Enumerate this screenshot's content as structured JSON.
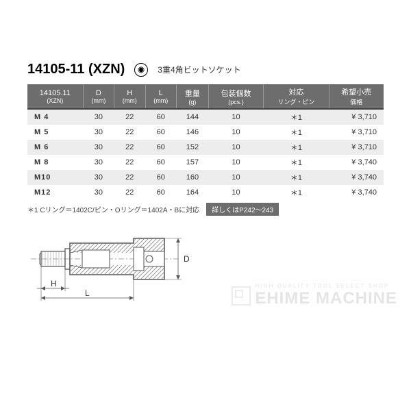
{
  "header": {
    "product_code": "14105-11 (XZN)",
    "subtitle": "3重4角ビットソケット"
  },
  "table": {
    "columns": [
      {
        "main": "14105.11",
        "sub": "(XZN)"
      },
      {
        "main": "D",
        "sub": "(mm)"
      },
      {
        "main": "H",
        "sub": "(mm)"
      },
      {
        "main": "L",
        "sub": "(mm)"
      },
      {
        "main": "重量",
        "sub": "(g)"
      },
      {
        "main": "包装個数",
        "sub": "(pcs.)"
      },
      {
        "main": "対応",
        "sub": "リング・ピン"
      },
      {
        "main": "希望小売",
        "sub": "価格"
      }
    ],
    "rows": [
      {
        "model": "M 4",
        "d": "30",
        "h": "22",
        "l": "60",
        "w": "144",
        "pcs": "10",
        "ring": "＊1",
        "price": "¥ 3,710",
        "alt": true
      },
      {
        "model": "M 5",
        "d": "30",
        "h": "22",
        "l": "60",
        "w": "146",
        "pcs": "10",
        "ring": "＊1",
        "price": "¥ 3,710",
        "alt": false
      },
      {
        "model": "M 6",
        "d": "30",
        "h": "22",
        "l": "60",
        "w": "152",
        "pcs": "10",
        "ring": "＊1",
        "price": "¥ 3,710",
        "alt": true
      },
      {
        "model": "M 8",
        "d": "30",
        "h": "22",
        "l": "60",
        "w": "157",
        "pcs": "10",
        "ring": "＊1",
        "price": "¥ 3,740",
        "alt": false
      },
      {
        "model": "M10",
        "d": "30",
        "h": "22",
        "l": "60",
        "w": "160",
        "pcs": "10",
        "ring": "＊1",
        "price": "¥ 3,740",
        "alt": true
      },
      {
        "model": "M12",
        "d": "30",
        "h": "22",
        "l": "60",
        "w": "164",
        "pcs": "10",
        "ring": "＊1",
        "price": "¥ 3,740",
        "alt": false
      }
    ]
  },
  "footnote": {
    "text": "＊1 Cリング＝1402C/ピン・Oリング＝1402A・Bに対応",
    "detail": "詳しくはP242～243"
  },
  "diagram": {
    "labels": {
      "H": "H",
      "L": "L",
      "D": "D"
    },
    "stroke": "#555",
    "fill_hatch": "#999"
  },
  "watermark": {
    "sub": "HIGH QUALITY TOOL SELECT SHOP",
    "main": "EHIME MACHINE"
  },
  "colors": {
    "header_bg": "#6d6d6d",
    "row_alt": "#ededed",
    "text": "#333333"
  }
}
